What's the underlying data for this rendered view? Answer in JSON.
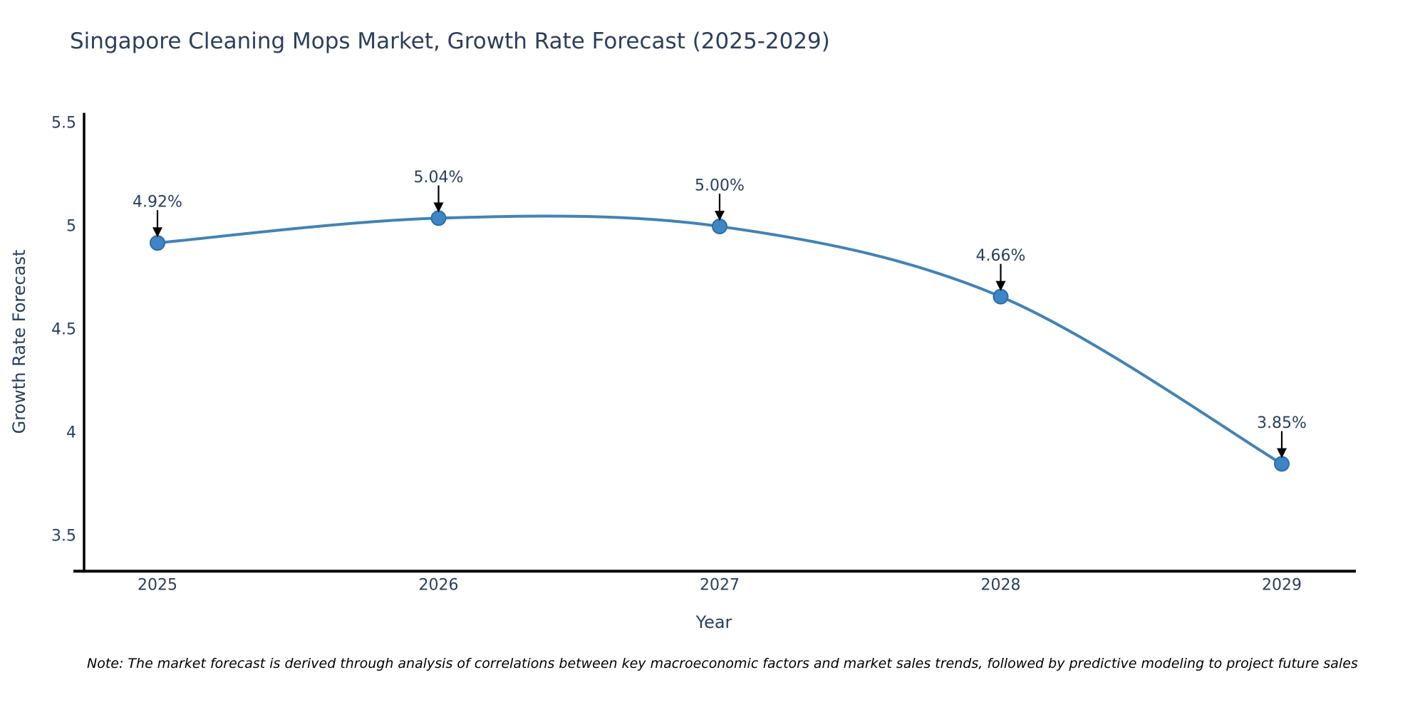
{
  "chart": {
    "title": "Singapore Cleaning Mops Market, Growth Rate Forecast (2025-2029)",
    "note": "Note: The market forecast is derived through analysis of correlations between key macroeconomic factors and market sales trends, followed by predictive modeling to project future sales"
  },
  "chart_data": {
    "type": "line",
    "title": "Singapore Cleaning Mops Market, Growth Rate Forecast (2025-2029)",
    "x": [
      2025,
      2026,
      2027,
      2028,
      2029
    ],
    "series": [
      {
        "name": "Growth Rate Forecast",
        "values": [
          4.92,
          5.04,
          5.0,
          4.66,
          3.85
        ]
      }
    ],
    "point_labels": [
      "4.92%",
      "5.04%",
      "5.00%",
      "4.66%",
      "3.85%"
    ],
    "xlabel": "Year",
    "ylabel": "Growth Rate Forecast",
    "xticks": [
      2025,
      2026,
      2027,
      2028,
      2029
    ],
    "yticks": [
      5.5,
      5,
      4.5,
      4,
      3.5
    ],
    "ylim": [
      3.33,
      5.55
    ],
    "grid": false,
    "legend_position": "none",
    "line_shape": "spline",
    "colors": {
      "line": "#4383b5",
      "marker": "#3d85c6",
      "marker_edge": "#2e6da4",
      "axis": "#000000",
      "text": "#2a3f5f",
      "arrow": "#000000",
      "note_text": "#000000"
    }
  }
}
